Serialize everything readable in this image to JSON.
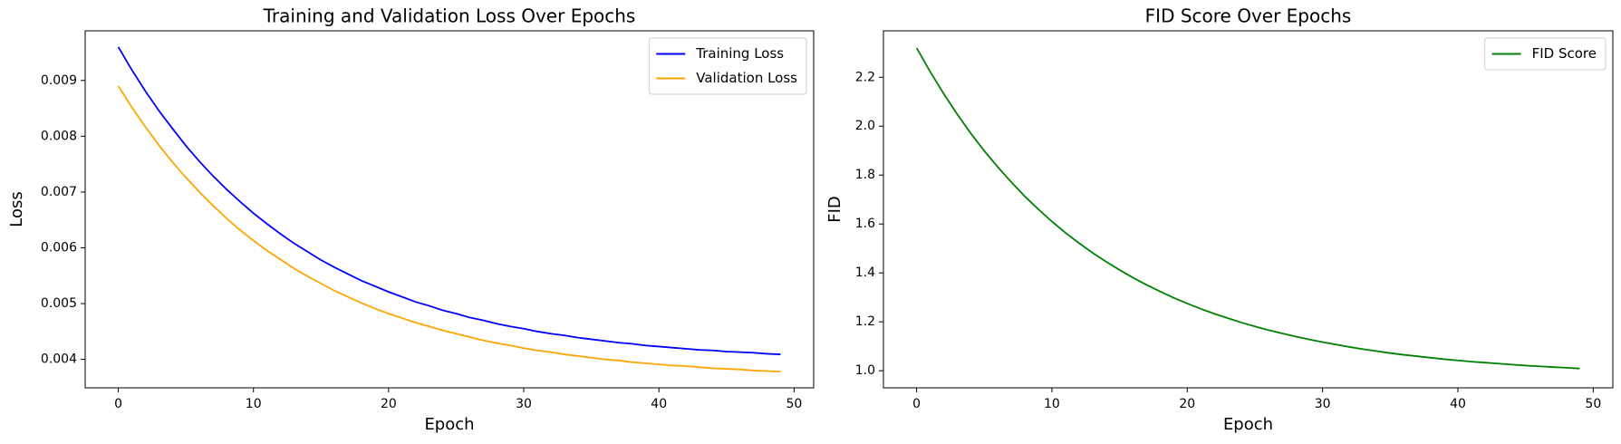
{
  "chart_data": [
    {
      "type": "line",
      "title": "Training and Validation Loss Over Epochs",
      "xlabel": "Epoch",
      "ylabel": "Loss",
      "x": [
        0,
        1,
        2,
        3,
        4,
        5,
        6,
        7,
        8,
        9,
        10,
        11,
        12,
        13,
        14,
        15,
        16,
        17,
        18,
        19,
        20,
        21,
        22,
        23,
        24,
        25,
        26,
        27,
        28,
        29,
        30,
        31,
        32,
        33,
        34,
        35,
        36,
        37,
        38,
        39,
        40,
        41,
        42,
        43,
        44,
        45,
        46,
        47,
        48,
        49
      ],
      "series": [
        {
          "name": "Training Loss",
          "color": "#0000ff",
          "values": [
            0.0096,
            0.00919,
            0.00881,
            0.00846,
            0.00814,
            0.00783,
            0.00755,
            0.00729,
            0.00705,
            0.00683,
            0.00662,
            0.00643,
            0.00625,
            0.00608,
            0.00593,
            0.00578,
            0.00565,
            0.00553,
            0.00541,
            0.00531,
            0.00521,
            0.00512,
            0.00503,
            0.00496,
            0.00488,
            0.00482,
            0.00475,
            0.0047,
            0.00464,
            0.00459,
            0.00455,
            0.0045,
            0.00446,
            0.00443,
            0.00439,
            0.00436,
            0.00433,
            0.0043,
            0.00428,
            0.00425,
            0.00423,
            0.00421,
            0.00419,
            0.00417,
            0.00416,
            0.00414,
            0.00413,
            0.00412,
            0.0041,
            0.00409
          ]
        },
        {
          "name": "Validation Loss",
          "color": "#ffa500",
          "values": [
            0.0089,
            0.00852,
            0.00817,
            0.00784,
            0.00754,
            0.00726,
            0.007,
            0.00676,
            0.00653,
            0.00632,
            0.00613,
            0.00595,
            0.00579,
            0.00563,
            0.00549,
            0.00536,
            0.00523,
            0.00512,
            0.00501,
            0.00491,
            0.00482,
            0.00474,
            0.00466,
            0.00459,
            0.00452,
            0.00446,
            0.0044,
            0.00434,
            0.00429,
            0.00425,
            0.0042,
            0.00416,
            0.00413,
            0.00409,
            0.00406,
            0.00403,
            0.004,
            0.00398,
            0.00395,
            0.00393,
            0.00391,
            0.00389,
            0.00388,
            0.00386,
            0.00384,
            0.00383,
            0.00382,
            0.0038,
            0.00379,
            0.00378
          ]
        }
      ],
      "xlim": [
        -2.45,
        51.45
      ],
      "xticks": [
        0,
        10,
        20,
        30,
        40,
        50
      ],
      "ylim": [
        0.00349,
        0.00989
      ],
      "yticks": [
        0.004,
        0.005,
        0.006,
        0.007,
        0.008,
        0.009
      ],
      "legend": "upper right"
    },
    {
      "type": "line",
      "title": "FID Score Over Epochs",
      "xlabel": "Epoch",
      "ylabel": "FID",
      "x": [
        0,
        1,
        2,
        3,
        4,
        5,
        6,
        7,
        8,
        9,
        10,
        11,
        12,
        13,
        14,
        15,
        16,
        17,
        18,
        19,
        20,
        21,
        22,
        23,
        24,
        25,
        26,
        27,
        28,
        29,
        30,
        31,
        32,
        33,
        34,
        35,
        36,
        37,
        38,
        39,
        40,
        41,
        42,
        43,
        44,
        45,
        46,
        47,
        48,
        49
      ],
      "series": [
        {
          "name": "FID Score",
          "color": "#008000",
          "values": [
            2.32,
            2.223,
            2.133,
            2.049,
            1.971,
            1.899,
            1.833,
            1.771,
            1.713,
            1.66,
            1.61,
            1.564,
            1.522,
            1.482,
            1.446,
            1.412,
            1.38,
            1.351,
            1.324,
            1.298,
            1.275,
            1.253,
            1.233,
            1.215,
            1.197,
            1.181,
            1.166,
            1.153,
            1.14,
            1.128,
            1.117,
            1.107,
            1.097,
            1.088,
            1.08,
            1.072,
            1.065,
            1.059,
            1.053,
            1.047,
            1.042,
            1.037,
            1.033,
            1.029,
            1.025,
            1.021,
            1.018,
            1.015,
            1.012,
            1.009
          ]
        }
      ],
      "xlim": [
        -2.45,
        51.45
      ],
      "xticks": [
        0,
        10,
        20,
        30,
        40,
        50
      ],
      "ylim": [
        0.93,
        2.39
      ],
      "yticks": [
        {
          "value": 1,
          "label": "1.0"
        },
        1.2,
        1.4,
        1.6,
        1.8,
        {
          "value": 2,
          "label": "2.0"
        },
        2.2
      ],
      "legend": "upper right"
    }
  ]
}
